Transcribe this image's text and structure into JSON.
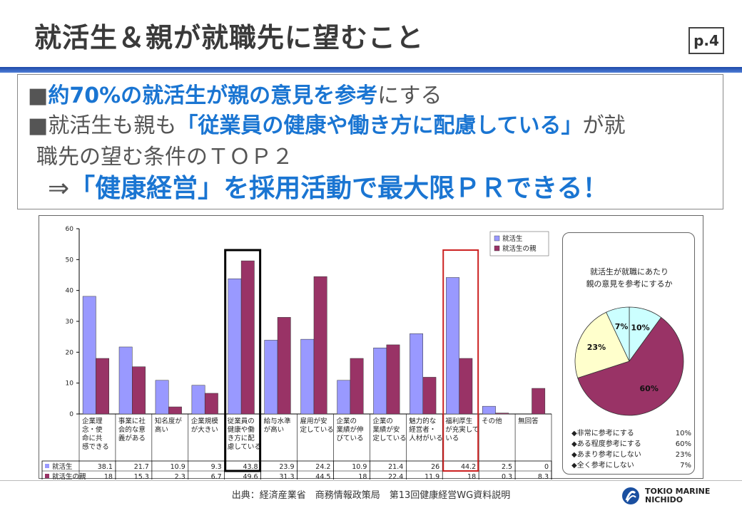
{
  "header": {
    "title": "就活生＆親が就職先に望むこと",
    "page": "p.4"
  },
  "summary": {
    "line1_bold": "約70%の就活生が親の意見を参考",
    "line1_rest": "にする",
    "line2_pre": "就活生も親も",
    "line2_bold": "「従業員の健康や働き方に配慮している」",
    "line2_post": "が就",
    "line3": "職先の望む条件のＴＯＰ２",
    "line4_arrow": "⇒",
    "line4_bold": "「健康経営」を採用活動で最大限ＰＲできる！",
    "bullet": "■"
  },
  "chart_data": [
    {
      "type": "bar",
      "categories": [
        "企業理念・使命に共感できる",
        "事業に社会的な意義がある",
        "知名度が高い",
        "企業規模が大きい",
        "従業員の健康や働き方に配慮している",
        "給与水準が高い",
        "雇用が安定している",
        "企業の業績が伸びている",
        "企業の業績が安定している",
        "魅力的な経営者・人材がいる",
        "福利厚生が充実している",
        "その他",
        "無回答"
      ],
      "category_lines": [
        [
          "企業理",
          "念・使",
          "命に共",
          "感できる"
        ],
        [
          "事業に社",
          "会的な意",
          "義がある"
        ],
        [
          "知名度が",
          "高い"
        ],
        [
          "企業規模",
          "が大きい"
        ],
        [
          "従業員の",
          "健康や働",
          "き方に配",
          "慮している"
        ],
        [
          "給与水準",
          "が高い"
        ],
        [
          "雇用が安",
          "定している"
        ],
        [
          "企業の",
          "業績が伸",
          "びている"
        ],
        [
          "企業の",
          "業績が安",
          "定している"
        ],
        [
          "魅力的な",
          "経営者・",
          "人材がいる"
        ],
        [
          "福利厚生",
          "が充実して",
          "いる"
        ],
        [
          "その他"
        ],
        [
          "無回答"
        ]
      ],
      "series": [
        {
          "name": "就活生",
          "color": "#9999ff",
          "values": [
            38.1,
            21.7,
            10.9,
            9.3,
            43.8,
            23.9,
            24.2,
            10.9,
            21.4,
            26,
            44.2,
            2.5,
            0
          ]
        },
        {
          "name": "就活生の親",
          "color": "#993366",
          "values": [
            18,
            15.3,
            2.3,
            6.7,
            49.6,
            31.3,
            44.5,
            18,
            22.4,
            11.9,
            18,
            0.3,
            8.3
          ]
        }
      ],
      "table_labels": [
        "就活生",
        "就活生の親"
      ],
      "table_values": [
        [
          "38.1",
          "21.7",
          "10.9",
          "9.3",
          "43.8",
          "23.9",
          "24.2",
          "10.9",
          "21.4",
          "26",
          "44.2",
          "2.5",
          "0"
        ],
        [
          "18",
          "15.3",
          "2.3",
          "6.7",
          "49.6",
          "31.3",
          "44.5",
          "18",
          "22.4",
          "11.9",
          "18",
          "0.3",
          "8.3"
        ]
      ],
      "ylim": [
        0,
        60
      ],
      "yticks": [
        "0",
        "10",
        "20",
        "30",
        "40",
        "50",
        "60"
      ],
      "grid": false,
      "legend": "top-right",
      "highlight_colors": [
        "#000000",
        "#cc2222"
      ]
    },
    {
      "type": "pie",
      "title_lines": [
        "就活生が就職にあたり",
        "親の意見を参考にするか"
      ],
      "slices": [
        {
          "label": "非常に参考にする",
          "value": 10,
          "pct": "10%",
          "color": "#ccffff"
        },
        {
          "label": "ある程度参考にする",
          "value": 60,
          "pct": "60%",
          "color": "#993366"
        },
        {
          "label": "あまり参考にしない",
          "value": 23,
          "pct": "23%",
          "color": "#ffffcc"
        },
        {
          "label": "全く参考にしない",
          "value": 7,
          "pct": "7%",
          "color": "#ccffff"
        }
      ],
      "legend_marker": "◆"
    }
  ],
  "footer": {
    "source": "出典：経済産業省　商務情報政策局　第13回健康経営WG資料説明"
  },
  "logo": {
    "line1": "TOKIO MARINE",
    "line2": "NICHIDO",
    "color": "#1a4fa0"
  }
}
